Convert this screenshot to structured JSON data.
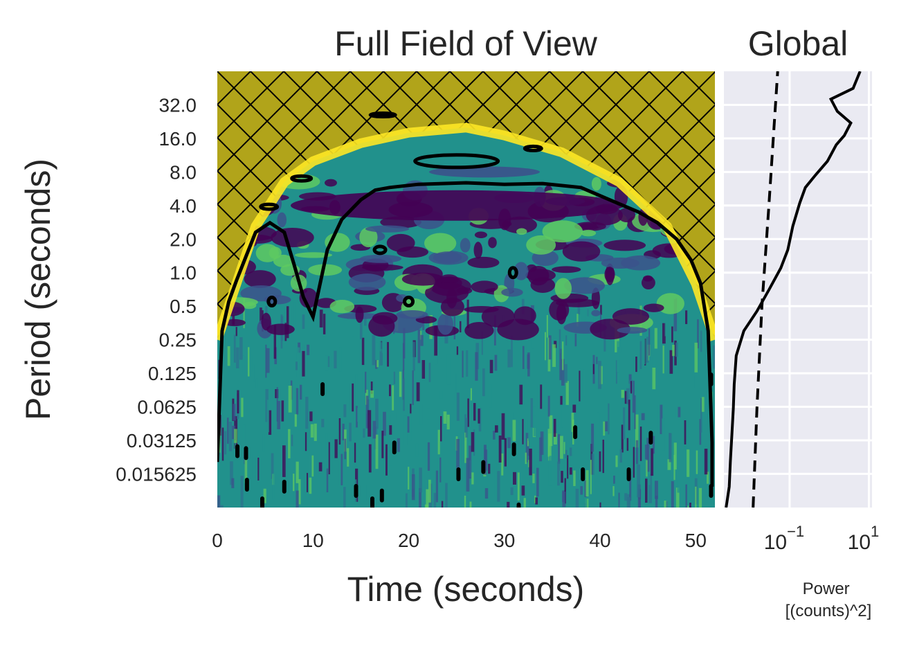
{
  "chart_data": [
    {
      "type": "heatmap",
      "title": "Full Field of View",
      "xlabel": "Time (seconds)",
      "ylabel": "Period (seconds)",
      "xlim": [
        0,
        52
      ],
      "x_ticks": [
        0,
        10,
        20,
        30,
        40,
        50
      ],
      "x_tick_labels": [
        "0",
        "10",
        "20",
        "30",
        "40",
        "50"
      ],
      "y_scale": "log2",
      "ylim": [
        0.0078,
        64
      ],
      "y_ticks": [
        32,
        16,
        8,
        4,
        2,
        1,
        0.5,
        0.25,
        0.125,
        0.0625,
        0.03125,
        0.015625
      ],
      "y_tick_labels": [
        "32.0",
        "16.0",
        "8.0",
        "4.0",
        "2.0",
        "1.0",
        "0.5",
        "0.25",
        "0.125",
        "0.0625",
        "0.03125",
        "0.015625"
      ],
      "colormap": "viridis",
      "cone_of_influence_color": "#b1a41a",
      "cone_of_influence_hatch": "crosshatch",
      "cone_of_influence": [
        [
          0,
          0.25
        ],
        [
          2,
          0.8
        ],
        [
          4,
          2.6
        ],
        [
          7,
          6.5
        ],
        [
          10,
          10
        ],
        [
          15,
          14.5
        ],
        [
          20,
          18
        ],
        [
          26,
          20
        ],
        [
          30,
          17
        ],
        [
          36,
          12
        ],
        [
          42,
          6.5
        ],
        [
          47,
          2.6
        ],
        [
          50,
          0.8
        ],
        [
          52,
          0.25
        ]
      ],
      "significance_contour": "black",
      "grid": false
    },
    {
      "type": "line",
      "title": "Global",
      "xlabel": "Power\n[(counts)^2]",
      "x_scale": "log",
      "x_ticks": [
        0.1,
        10
      ],
      "x_tick_labels_base": [
        "10",
        "10"
      ],
      "x_tick_labels_exp": [
        "−1",
        "1"
      ],
      "y_scale": "log2",
      "ylim": [
        0.0078,
        64
      ],
      "grid": true,
      "background": "#eaeaf2",
      "series": [
        {
          "style": "solid",
          "color": "#000000",
          "points": [
            [
              0.0025,
              0.0078
            ],
            [
              0.003,
              0.012
            ],
            [
              0.0032,
              0.02
            ],
            [
              0.0035,
              0.035
            ],
            [
              0.0038,
              0.06
            ],
            [
              0.004,
              0.1
            ],
            [
              0.0045,
              0.18
            ],
            [
              0.007,
              0.3
            ],
            [
              0.015,
              0.45
            ],
            [
              0.03,
              0.7
            ],
            [
              0.06,
              1.1
            ],
            [
              0.09,
              1.6
            ],
            [
              0.12,
              2.6
            ],
            [
              0.18,
              4.2
            ],
            [
              0.25,
              5.8
            ],
            [
              0.45,
              7.5
            ],
            [
              0.9,
              10
            ],
            [
              1.5,
              14
            ],
            [
              2.4,
              17
            ],
            [
              3.5,
              22
            ],
            [
              1.6,
              28
            ],
            [
              1.1,
              36
            ],
            [
              4,
              45
            ],
            [
              6,
              64
            ]
          ]
        },
        {
          "style": "dashed",
          "color": "#000000",
          "points": [
            [
              0.012,
              0.0078
            ],
            [
              0.015,
              0.06
            ],
            [
              0.02,
              0.5
            ],
            [
              0.03,
              4
            ],
            [
              0.05,
              64
            ]
          ]
        }
      ]
    }
  ]
}
